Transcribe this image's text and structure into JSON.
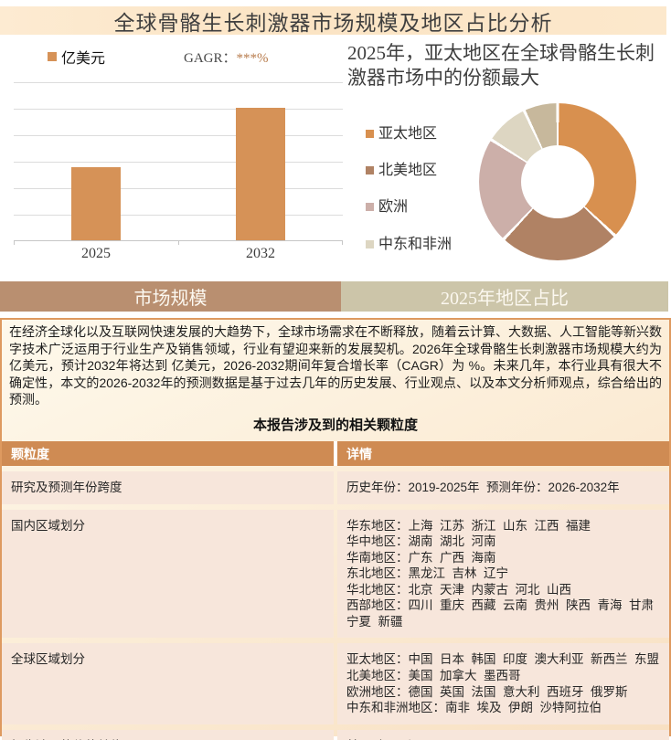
{
  "title": "全球骨骼生长刺激器市场规模及地区占比分析",
  "bar_section": {
    "legend_label": "亿美元",
    "cagr_label": "GAGR：",
    "cagr_value": "***%",
    "tab_label": "市场规模"
  },
  "pie_section": {
    "heading": "2025年，亚太地区在全球骨骼生长刺激器市场中的份额最大",
    "tab_label": "2025年地区占比"
  },
  "chart_data": [
    {
      "type": "bar",
      "title": "市场规模",
      "categories": [
        "2025",
        "2032"
      ],
      "values": [
        2.75,
        5
      ],
      "ylim": [
        0,
        6
      ],
      "ylabel": "亿美元",
      "values_masked": true,
      "masked_note": "GAGR：***%（具体数值以***隐藏）",
      "bar_color": "#D69257",
      "grid": true,
      "gridline_color": "#DCDCDC"
    },
    {
      "type": "pie",
      "donut": true,
      "title": "2025年地区占比",
      "labels": [
        "亚太地区",
        "北美地区",
        "欧洲",
        "中东和非洲",
        ""
      ],
      "values": [
        37,
        25,
        22,
        9,
        7
      ],
      "colors": [
        "#D8904F",
        "#B08264",
        "#CCAFA9",
        "#DDD6C2",
        "#C7B89C"
      ],
      "legend_labels": [
        "亚太地区",
        "北美地区",
        "欧洲",
        "中东和非洲"
      ],
      "legend_position": "left"
    }
  ],
  "paragraph": "在经济全球化以及互联网快速发展的大趋势下，全球市场需求在不断释放，随着云计算、大数据、人工智能等新兴数字技术广泛运用于行业生产及销售领域，行业有望迎来新的发展契机。2026年全球骨骼生长刺激器市场规模大约为 亿美元，预计2032年将达到 亿美元，2026-2032期间年复合增长率（CAGR）为 %。未来几年，本行业具有很大不确定性，本文的2026-2032年的预测数据是基于过去几年的历史发展、行业观点、以及本文分析师观点，综合给出的预测。",
  "table": {
    "heading": "本报告涉及到的相关颗粒度",
    "columns": [
      "颗粒度",
      "详情"
    ],
    "rows": [
      {
        "label": "研究及预测年份跨度",
        "details": [
          "历史年份：2019-2025年  预测年份：2026-2032年"
        ]
      },
      {
        "label": "国内区域划分",
        "details": [
          "华东地区：上海  江苏  浙江  山东  江西  福建",
          "华中地区：湖南  湖北  河南",
          "华南地区：广东  广西  海南",
          "东北地区：黑龙江  吉林  辽宁",
          "华北地区：北京  天津  内蒙古  河北  山西",
          "西部地区：四川  重庆  西藏  云南  贵州  陕西  青海  甘肃  宁夏  新疆"
        ]
      },
      {
        "label": "全球区域划分",
        "details": [
          "亚太地区：中国  日本  韩国  印度  澳大利亚  新西兰  东盟",
          "北美地区：美国  加拿大  墨西哥",
          "欧洲地区：德国  英国  法国  意大利  西班牙  俄罗斯",
          "中东和非洲地区：南非  埃及  伊朗  沙特阿拉伯"
        ]
      },
      {
        "label": "报告涉及的价值单位",
        "details": [
          "美元/人民币"
        ]
      }
    ]
  },
  "colors": {
    "title_bar_bg": "#FBE5C7",
    "bar": "#D69257",
    "tab_left_bg": "#B98F70",
    "tab_right_bg": "#CCC5A9",
    "section_border": "#DE9A60",
    "table_header_bg": "#CF8B53",
    "table_row_bg": "#F7E6DB",
    "cagr_stars": "#B87C4D"
  }
}
